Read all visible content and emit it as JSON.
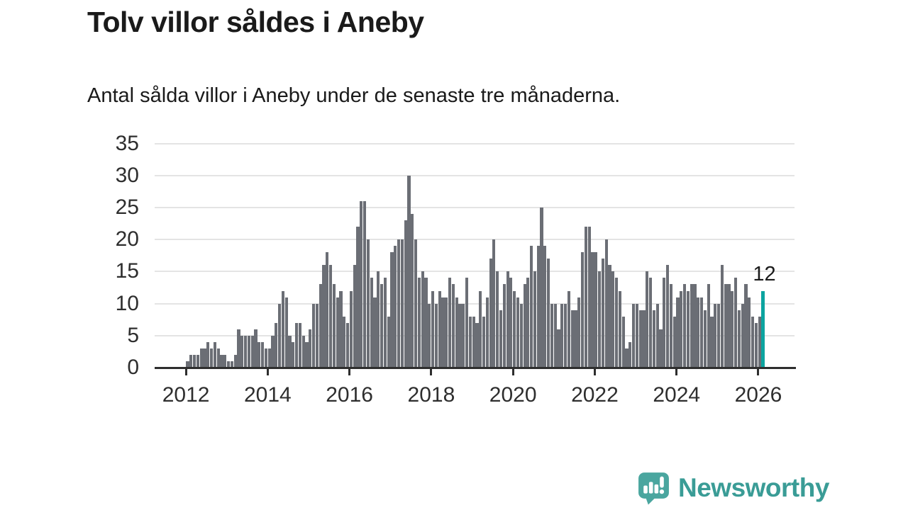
{
  "title": "Tolv villor såldes i Aneby",
  "subtitle": "Antal sålda villor i Aneby under de senaste tre månaderna.",
  "annotation": {
    "label": "12"
  },
  "branding": {
    "name": "Newsworthy",
    "icon": "newsworthy-logo-icon",
    "wordmark_color": "#3a9c96",
    "icon_color": "#4aa69f"
  },
  "colors": {
    "bar": "#6b6e75",
    "highlight": "#0ca4a0",
    "axis": "#2e2e2e",
    "grid": "#e4e4e4",
    "text": "#1a1a1a",
    "background": "#ffffff"
  },
  "chart_data": {
    "type": "bar",
    "title": "Tolv villor såldes i Aneby",
    "subtitle": "Antal sålda villor i Aneby under de senaste tre månaderna.",
    "unit": "sålda villor (rullande 3 månader)",
    "frequency": "monthly",
    "x_start": "2012-01",
    "x_end": "2026-02",
    "x_tick_labels": [
      "2012",
      "2014",
      "2016",
      "2018",
      "2020",
      "2022",
      "2024",
      "2026"
    ],
    "y_ticks": [
      0,
      5,
      10,
      15,
      20,
      25,
      30,
      35
    ],
    "ylim": [
      0,
      35
    ],
    "grid": "horizontal",
    "legend": "none",
    "highlight_last": true,
    "highlight_value": 12,
    "values": [
      1,
      2,
      2,
      2,
      3,
      3,
      4,
      3,
      4,
      3,
      2,
      2,
      1,
      1,
      2,
      6,
      5,
      5,
      5,
      5,
      6,
      4,
      4,
      3,
      3,
      5,
      7,
      10,
      12,
      11,
      5,
      4,
      7,
      7,
      5,
      4,
      6,
      10,
      10,
      13,
      16,
      18,
      16,
      13,
      11,
      12,
      8,
      7,
      12,
      16,
      22,
      26,
      26,
      20,
      14,
      11,
      15,
      13,
      14,
      8,
      18,
      19,
      20,
      20,
      23,
      30,
      24,
      20,
      14,
      15,
      14,
      10,
      12,
      10,
      12,
      11,
      11,
      14,
      13,
      11,
      10,
      10,
      14,
      8,
      8,
      7,
      12,
      8,
      11,
      17,
      20,
      15,
      9,
      13,
      15,
      14,
      12,
      11,
      10,
      13,
      14,
      19,
      15,
      19,
      25,
      19,
      17,
      10,
      10,
      6,
      10,
      10,
      12,
      9,
      9,
      11,
      18,
      22,
      22,
      18,
      18,
      15,
      17,
      20,
      16,
      15,
      14,
      12,
      8,
      3,
      4,
      10,
      10,
      9,
      9,
      15,
      14,
      9,
      10,
      6,
      14,
      16,
      13,
      8,
      11,
      12,
      13,
      12,
      13,
      13,
      11,
      11,
      9,
      13,
      8,
      10,
      10,
      16,
      13,
      13,
      12,
      14,
      9,
      10,
      13,
      11,
      8,
      7,
      8,
      12
    ]
  }
}
